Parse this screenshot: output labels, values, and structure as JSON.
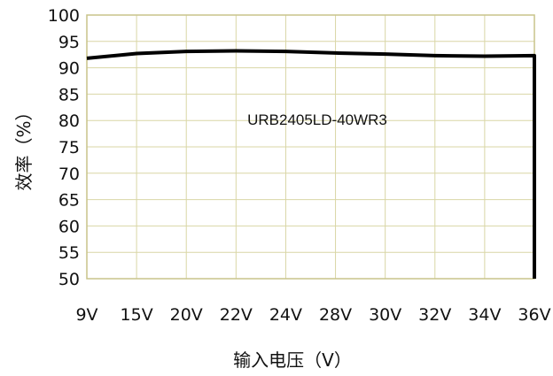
{
  "chart_data": {
    "type": "line",
    "title": "",
    "annotation": "URB2405LD-40WR3",
    "xlabel": "输入电压（V）",
    "ylabel": "效率（%）",
    "categories": [
      "9V",
      "15V",
      "20V",
      "22V",
      "24V",
      "28V",
      "30V",
      "32V",
      "34V",
      "36V"
    ],
    "series": [
      {
        "values": [
          91.8,
          92.7,
          93.1,
          93.2,
          93.1,
          92.8,
          92.6,
          92.3,
          92.2,
          92.3
        ]
      }
    ],
    "ylim": [
      50,
      100
    ],
    "yticks": [
      50,
      55,
      60,
      65,
      70,
      75,
      80,
      85,
      90,
      95,
      100
    ],
    "grid": true,
    "colors": {
      "line": "#000000",
      "grid": "#d9d6a6",
      "frame": "#c8c48a"
    }
  }
}
